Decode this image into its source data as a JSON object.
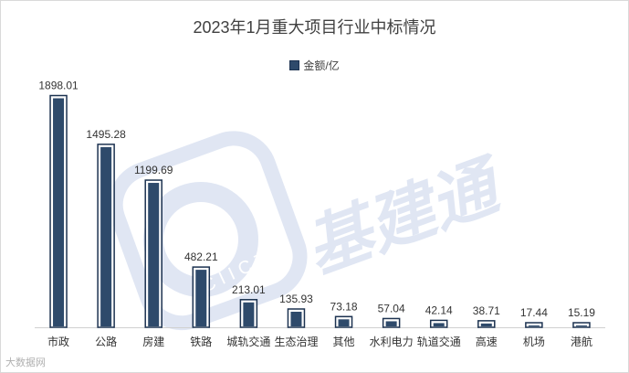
{
  "chart_data": {
    "type": "bar",
    "title": "2023年1月重大项目行业中标情况",
    "categories": [
      "市政",
      "公路",
      "房建",
      "铁路",
      "城轨交通",
      "生态治理",
      "其他",
      "水利电力",
      "轨道交通",
      "高速",
      "机场",
      "港航"
    ],
    "series": [
      {
        "name": "金额/亿",
        "values": [
          1898.01,
          1495.28,
          1199.69,
          482.21,
          213.01,
          135.93,
          73.18,
          57.04,
          42.14,
          38.71,
          17.44,
          15.19
        ],
        "labels": [
          "1898.01",
          "1495.28",
          "1199.69",
          "482.21",
          "213.01",
          "135.93",
          "73.18",
          "57.04",
          "42.14",
          "38.71",
          "17.44",
          "15.19"
        ],
        "color": "#2e4a6b"
      }
    ],
    "ylim": [
      0,
      2000
    ],
    "grid": false,
    "legend": "top-center",
    "xlabel": "",
    "ylabel": ""
  },
  "watermark": {
    "text": "基建通",
    "logo_text": "CIICT",
    "color": "#c7d3ea"
  },
  "footer": {
    "mark": "大数据网"
  }
}
